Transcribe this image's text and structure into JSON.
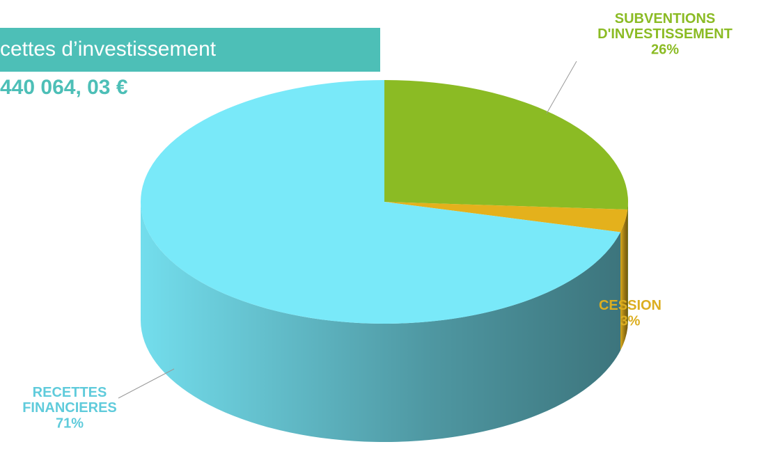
{
  "chart_data": {
    "type": "pie",
    "title": "cettes d’investissement",
    "subtitle": "440 064, 03 €",
    "categories": [
      "SUBVENTIONS D'INVESTISSEMENT",
      "CESSION",
      "RECETTES FINANCIERES"
    ],
    "values": [
      26,
      3,
      71
    ],
    "value_labels": [
      "26%",
      "3%",
      "71%"
    ],
    "colors": [
      "#8bbb24",
      "#e4b11c",
      "#79e9f9"
    ]
  }
}
